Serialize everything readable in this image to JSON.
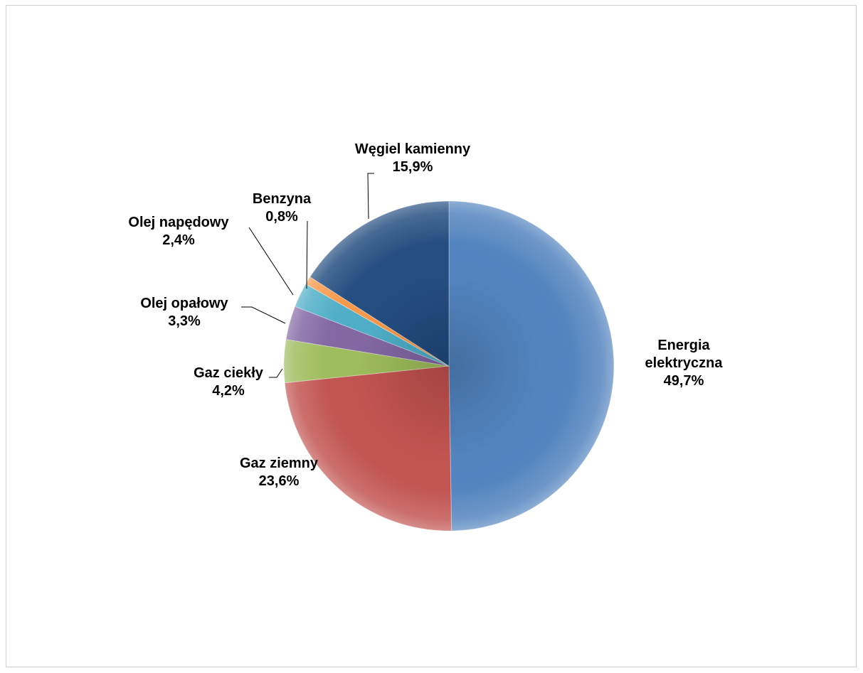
{
  "chart_data": {
    "type": "pie",
    "title": "",
    "categories": [
      "Energia elektryczna",
      "Gaz ziemny",
      "Gaz ciekły",
      "Olej opałowy",
      "Olej napędowy",
      "Benzyna",
      "Węgiel kamienny"
    ],
    "values": [
      49.7,
      23.6,
      4.2,
      3.3,
      2.4,
      0.8,
      15.9
    ],
    "category_lines": [
      [
        "Energia",
        "elektryczna"
      ],
      [
        "Gaz ziemny"
      ],
      [
        "Gaz ciekły"
      ],
      [
        "Olej opałowy"
      ],
      [
        "Olej napędowy"
      ],
      [
        "Benzyna"
      ],
      [
        "Węgiel kamienny"
      ]
    ],
    "value_labels": [
      "49,7%",
      "23,6%",
      "4,2%",
      "3,3%",
      "2,4%",
      "0,8%",
      "15,9%"
    ],
    "colors": [
      "#4f81bd",
      "#c0504d",
      "#9bbb59",
      "#8064a2",
      "#4bacc6",
      "#f79646",
      "#1f497d"
    ],
    "legend": "none",
    "start_angle": "12 o'clock",
    "direction": "clockwise"
  }
}
